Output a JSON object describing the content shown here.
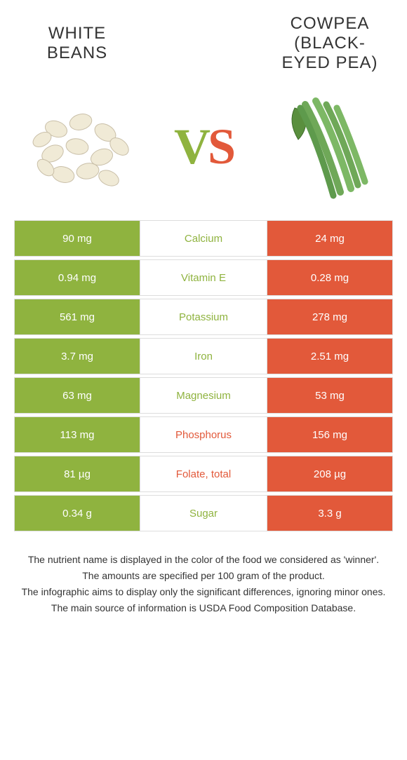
{
  "colors": {
    "left_bg": "#8fb33f",
    "right_bg": "#e2593a",
    "mid_bg": "#ffffff",
    "border": "#dddddd",
    "text_dark": "#333333",
    "cell_text": "#ffffff"
  },
  "header": {
    "left_title": "WHITE BEANS",
    "right_title": "COWPEA (BLACK-EYED PEA)"
  },
  "vs": {
    "v": "V",
    "s": "S"
  },
  "rows": [
    {
      "left": "90 mg",
      "label": "Calcium",
      "right": "24 mg",
      "winner": "left"
    },
    {
      "left": "0.94 mg",
      "label": "Vitamin E",
      "right": "0.28 mg",
      "winner": "left"
    },
    {
      "left": "561 mg",
      "label": "Potassium",
      "right": "278 mg",
      "winner": "left"
    },
    {
      "left": "3.7 mg",
      "label": "Iron",
      "right": "2.51 mg",
      "winner": "left"
    },
    {
      "left": "63 mg",
      "label": "Magnesium",
      "right": "53 mg",
      "winner": "left"
    },
    {
      "left": "113 mg",
      "label": "Phosphorus",
      "right": "156 mg",
      "winner": "right"
    },
    {
      "left": "81 µg",
      "label": "Folate, total",
      "right": "208 µg",
      "winner": "right"
    },
    {
      "left": "0.34 g",
      "label": "Sugar",
      "right": "3.3 g",
      "winner": "left"
    }
  ],
  "footnotes": [
    "The nutrient name is displayed in the color of the food we considered as 'winner'.",
    "The amounts are specified per 100 gram of the product.",
    "The infographic aims to display only the significant differences, ignoring minor ones.",
    "The main source of information is USDA Food Composition Database."
  ]
}
